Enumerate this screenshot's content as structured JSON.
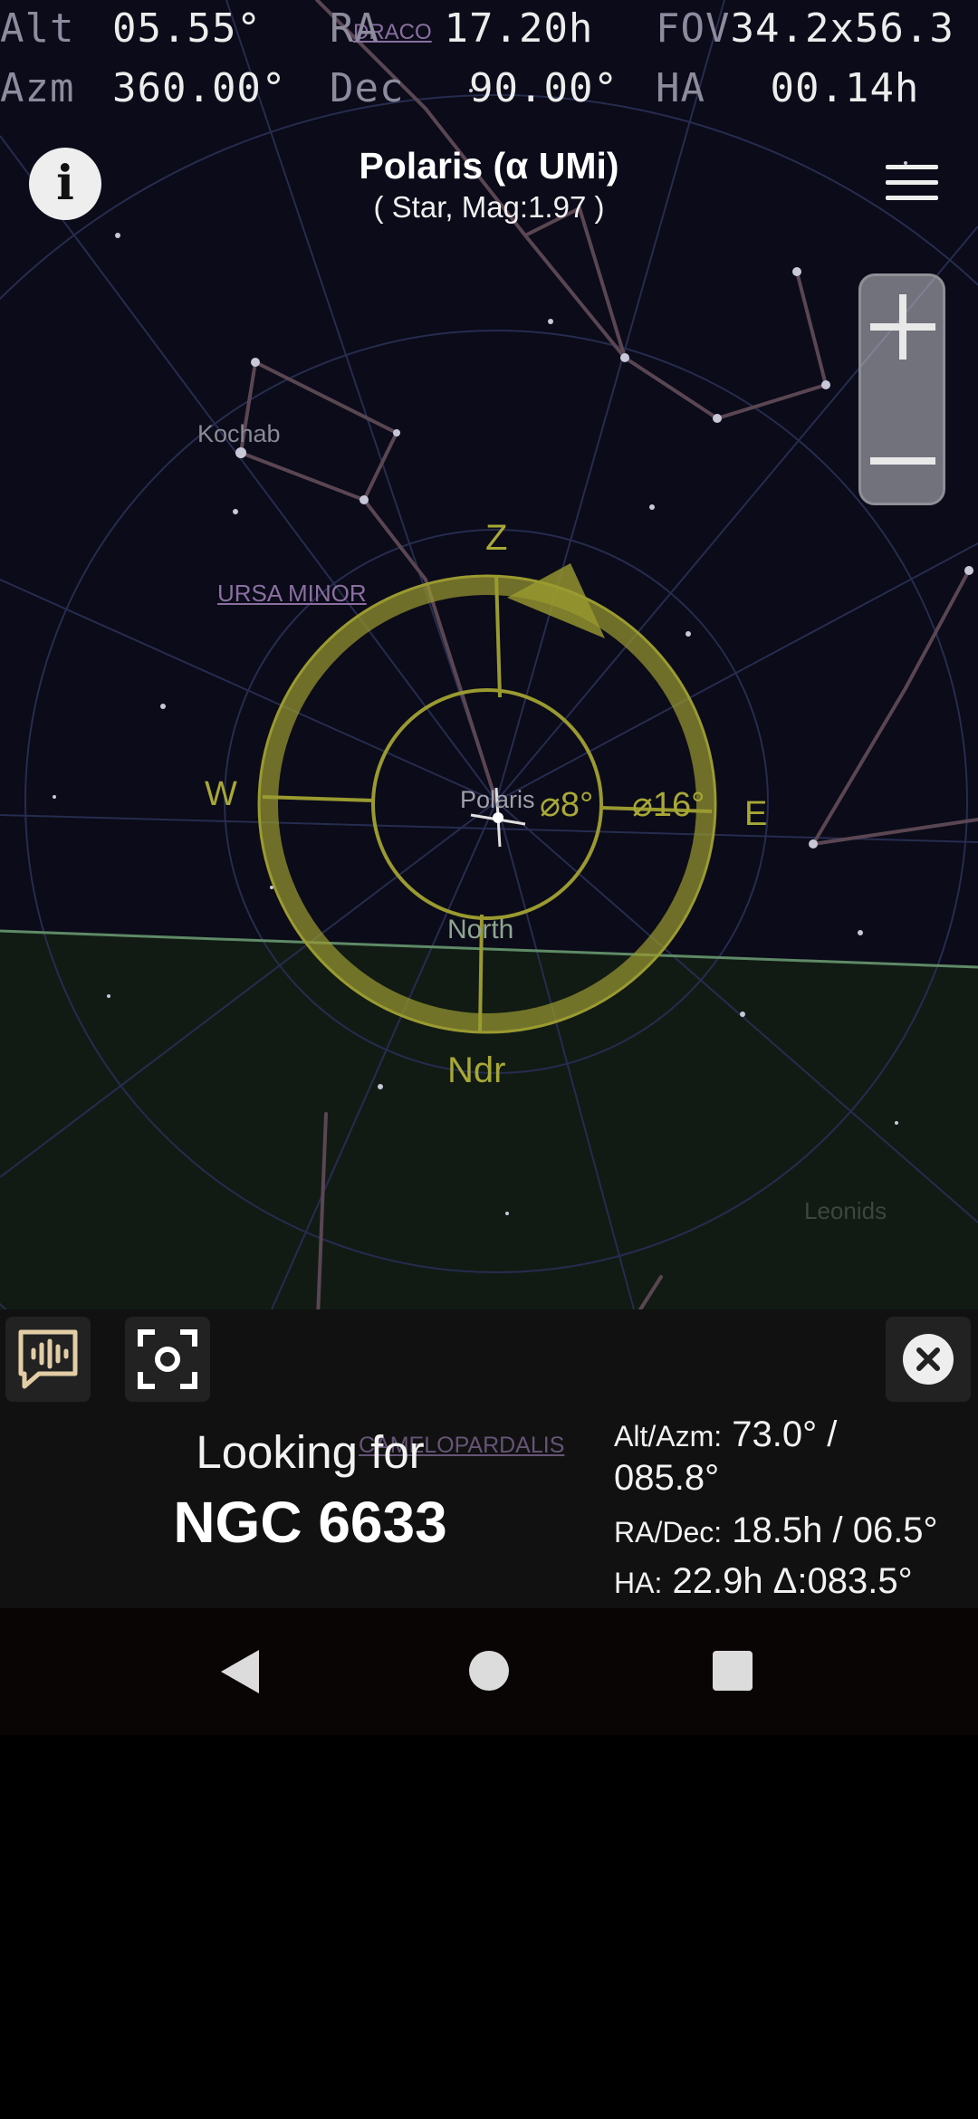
{
  "readouts": {
    "alt_label": "Alt",
    "alt_value": "05.55°",
    "ra_label": "RA",
    "ra_value": "17.20h",
    "fov_label": "FOV",
    "fov_value": "34.2x56.3",
    "azm_label": "Azm",
    "azm_value": "360.00°",
    "dec_label": "Dec",
    "dec_value": "90.00°",
    "ha_label": "HA",
    "ha_value": "00.14h"
  },
  "header": {
    "title": "Polaris (α UMi)",
    "subtitle": "( Star, Mag:1.97 )"
  },
  "sky_labels": {
    "draco": "DRACO",
    "kochab": "Kochab",
    "ursa_minor": "URSA MINOR",
    "zenith": "Z",
    "west": "W",
    "east": "E",
    "polaris": "Polaris",
    "ring8": "⌀8°",
    "ring16": "⌀16°",
    "north": "North",
    "nadir": "Ndr",
    "leonids": "Leonids",
    "camelopardalis": "CAMELOPARDALIS"
  },
  "icons": {
    "info": "i",
    "menu": "hamburger-icon",
    "zoom_in": "plus-icon",
    "zoom_out": "minus-icon",
    "voice": "voice-feedback-icon",
    "center": "center-focus-icon",
    "close": "close-icon"
  },
  "panel": {
    "looking_label": "Looking for",
    "target": "NGC 6633",
    "altazm_label": "Alt/Azm:",
    "altazm_value_1": "73.0° /",
    "altazm_value_2": "085.8°",
    "radec_label": "RA/Dec:",
    "radec_value": "18.5h / 06.5°",
    "ha_label": "HA:",
    "ha_value": "22.9h Δ:083.5°"
  },
  "colors": {
    "sky": "#0b0b19",
    "horizon_fill": "#101a12",
    "reticle": "#a0a032",
    "panel": "#111111"
  }
}
